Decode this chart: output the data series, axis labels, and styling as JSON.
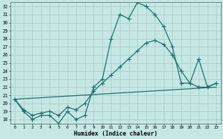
{
  "xlabel": "Humidex (Indice chaleur)",
  "bg_color": "#c5e8e5",
  "grid_color": "#a5ceca",
  "line_color": "#1a6b6b",
  "xlim": [
    -0.5,
    23.5
  ],
  "ylim": [
    17.5,
    32.5
  ],
  "yticks": [
    18,
    19,
    20,
    21,
    22,
    23,
    24,
    25,
    26,
    27,
    28,
    29,
    30,
    31,
    32
  ],
  "xticks": [
    0,
    1,
    2,
    3,
    4,
    5,
    6,
    7,
    8,
    9,
    10,
    11,
    12,
    13,
    14,
    15,
    16,
    17,
    18,
    19,
    20,
    21,
    22,
    23
  ],
  "series": [
    {
      "x": [
        0,
        1,
        2,
        3,
        4,
        5,
        6,
        7,
        8,
        9,
        10,
        11,
        12,
        13,
        14,
        15,
        16,
        17,
        18,
        19,
        20,
        21,
        22,
        23
      ],
      "y": [
        20.5,
        19.0,
        18.0,
        18.5,
        18.5,
        17.5,
        19.0,
        18.0,
        18.5,
        22.0,
        23.0,
        28.0,
        31.0,
        30.5,
        32.5,
        32.0,
        31.0,
        29.5,
        27.0,
        22.5,
        22.5,
        22.0,
        22.0,
        22.5
      ],
      "marker": true,
      "lw": 0.9
    },
    {
      "x": [
        0,
        1,
        2,
        3,
        4,
        5,
        6,
        7,
        8,
        9,
        10,
        11,
        12,
        13,
        14,
        15,
        16,
        17,
        18,
        19,
        20,
        21,
        22,
        23
      ],
      "y": [
        20.5,
        19.2,
        18.5,
        18.8,
        19.0,
        18.5,
        19.5,
        19.2,
        20.0,
        21.5,
        22.5,
        23.5,
        24.5,
        25.5,
        26.5,
        27.5,
        27.8,
        27.3,
        26.0,
        24.0,
        22.5,
        25.5,
        22.0,
        22.5
      ],
      "marker": true,
      "lw": 0.9
    },
    {
      "x": [
        0,
        23
      ],
      "y": [
        20.5,
        22.0
      ],
      "marker": false,
      "lw": 0.9
    }
  ]
}
